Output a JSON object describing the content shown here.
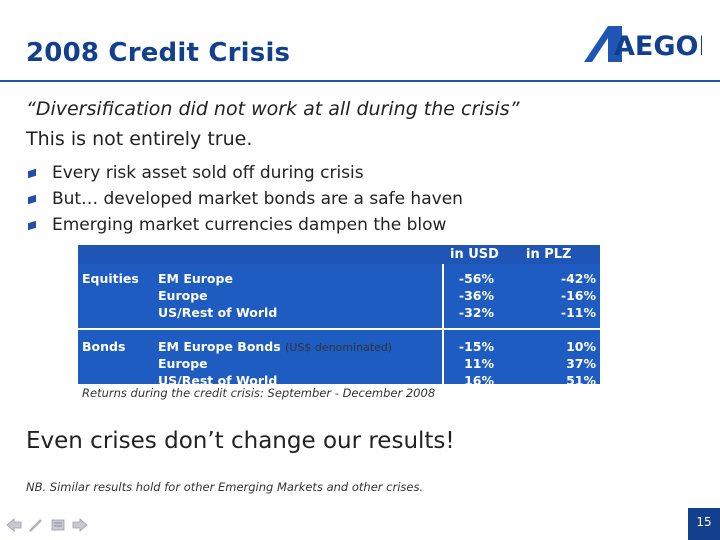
{
  "slide": {
    "title": "2008 Credit Crisis",
    "logo_text": "AEGON",
    "quote": "“Diversification did not work at all during the crisis”",
    "subline": "This is not entirely true.",
    "bullets": [
      "Every risk asset sold off during crisis",
      "But… developed market bonds are a safe haven",
      "Emerging market currencies dampen the blow"
    ],
    "headline": "Even crises don’t change our results!",
    "nb": "NB. Similar results hold for other Emerging Markets and other crises.",
    "page_number": "15"
  },
  "table": {
    "col_usd": "in USD",
    "col_plz": "in PLZ",
    "caption": "Returns during the credit crisis: September - December 2008",
    "groups": [
      {
        "label": "Equities",
        "rows": [
          {
            "name": "EM Europe",
            "note": "",
            "usd": "-56%",
            "plz": "-42%"
          },
          {
            "name": "Europe",
            "note": "",
            "usd": "-36%",
            "plz": "-16%"
          },
          {
            "name": "US/Rest of World",
            "note": "",
            "usd": "-32%",
            "plz": "-11%"
          }
        ]
      },
      {
        "label": "Bonds",
        "rows": [
          {
            "name": "EM Europe Bonds",
            "note": "(US$ denominated)",
            "usd": "-15%",
            "plz": "10%"
          },
          {
            "name": "Europe",
            "note": "",
            "usd": "11%",
            "plz": "37%"
          },
          {
            "name": "US/Rest of World",
            "note": "",
            "usd": "16%",
            "plz": "51%"
          }
        ]
      }
    ]
  },
  "colors": {
    "title": "#123f8e",
    "table_fill": "#1e5cc1",
    "accent": "#1f57b0"
  },
  "icons": [
    "back-arrow-icon",
    "pen-icon",
    "menu-icon",
    "forward-arrow-icon"
  ]
}
